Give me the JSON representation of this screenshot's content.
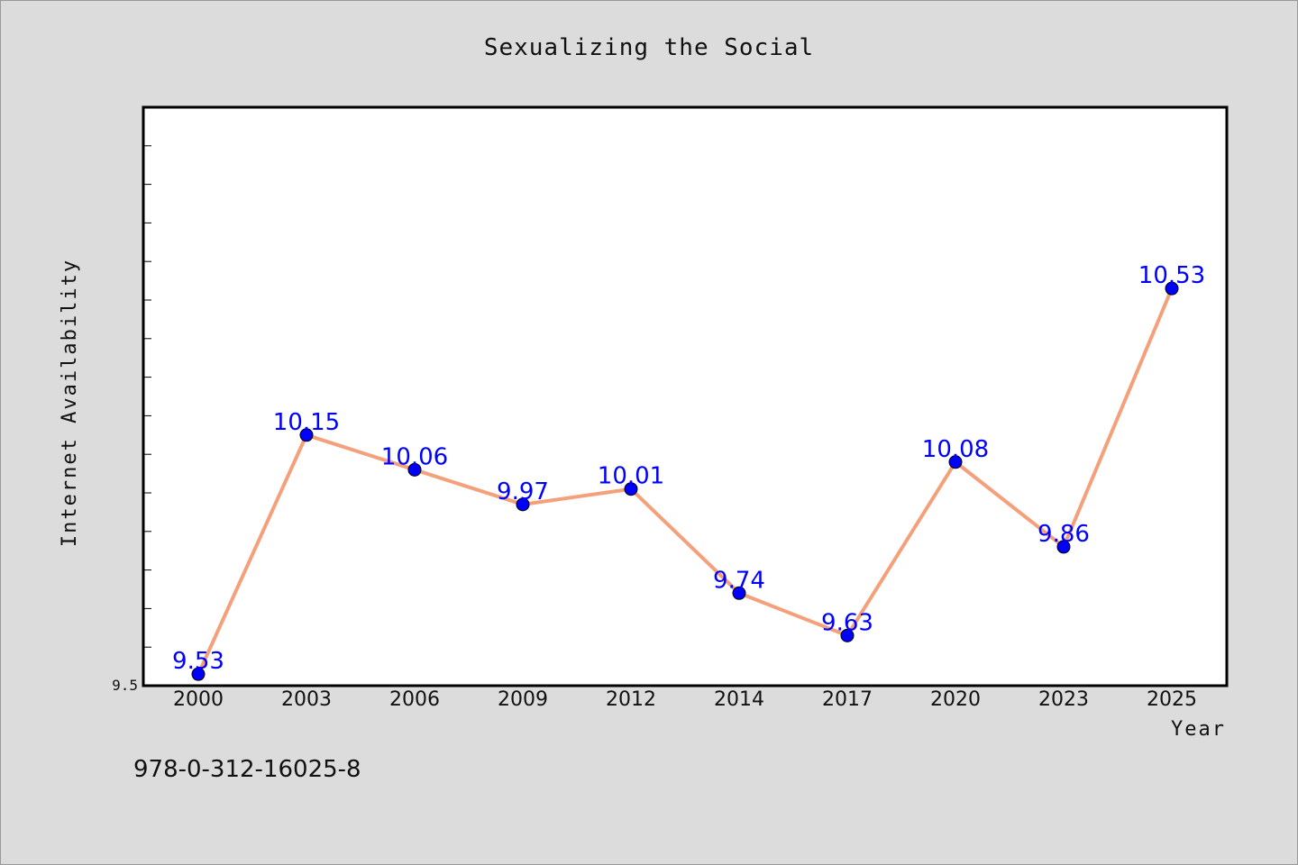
{
  "chart_data": {
    "type": "line",
    "title": "Sexualizing the Social",
    "xlabel": "Year",
    "ylabel": "Internet Availability",
    "categories": [
      "2000",
      "2003",
      "2006",
      "2009",
      "2012",
      "2014",
      "2017",
      "2020",
      "2023",
      "2025"
    ],
    "values": [
      9.53,
      10.15,
      10.06,
      9.97,
      10.01,
      9.74,
      9.63,
      10.08,
      9.86,
      10.53
    ],
    "data_labels": [
      "9.53",
      "10.15",
      "10.06",
      "9.97",
      "10.01",
      "9.74",
      "9.63",
      "10.08",
      "9.86",
      "10.53"
    ],
    "ylim": [
      9.5,
      11.0
    ],
    "y_tick_labels": [
      "9.5"
    ],
    "line_color": "#f4a07a",
    "marker_color": "#0000ff",
    "label_color": "#0000ff",
    "background_color": "#dcdcdc",
    "plot_background": "#ffffff",
    "grid": false,
    "legend": "none"
  },
  "footer": {
    "isbn": "978-0-312-16025-8"
  }
}
